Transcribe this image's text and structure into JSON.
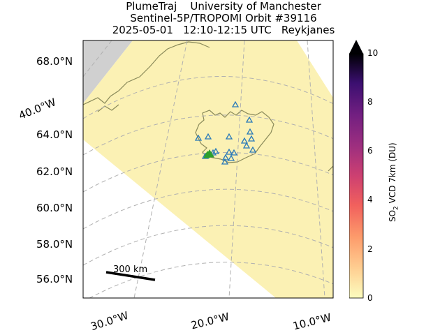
{
  "title": {
    "line1": "PlumeTraj    University of Manchester",
    "line2": "Sentinel-5P/TROPOMI Orbit #39116",
    "line3": "2025-05-01   12:10-12:15 UTC   Reykjanes"
  },
  "map": {
    "lat_labels": [
      "68.0°N",
      "64.0°N",
      "62.0°N",
      "60.0°N",
      "58.0°N",
      "56.0°N"
    ],
    "lon_labels": [
      "40.0°W",
      "30.0°W",
      "20.0°W",
      "10.0°W"
    ],
    "scale_bar_label": "300 km",
    "colors": {
      "swath_fill": "#fbf1b4",
      "land_outside_swath": "#d0d0d0",
      "coastline": "#8a8a5a",
      "volcano_marker": "#2a7ab9",
      "source_marker": "#2ca02c",
      "grid": "#b0b0b0"
    },
    "volcano_marker_icon": "triangle-outline-icon",
    "source_marker_icon": "triangle-filled-icon"
  },
  "colorbar": {
    "label_prefix": "SO",
    "label_sub": "2",
    "label_suffix": " VCD 7km (DU)",
    "ticks": [
      "10",
      "8",
      "6",
      "4",
      "2",
      "0"
    ],
    "range": [
      0,
      10
    ],
    "extend": "max",
    "colormap": "magma_r"
  }
}
